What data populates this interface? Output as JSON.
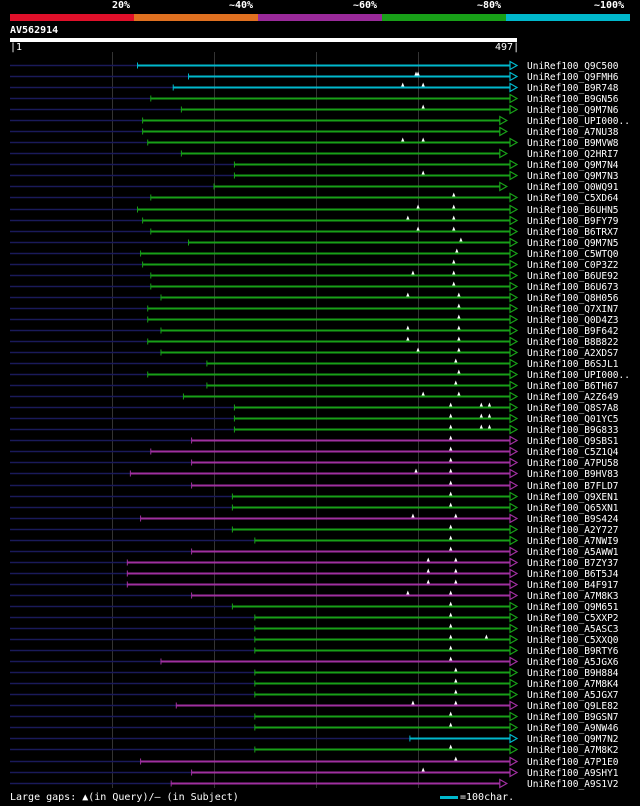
{
  "legend": {
    "segments": [
      {
        "label": "20%",
        "color": "#e0102a"
      },
      {
        "label": "~40%",
        "color": "#e07020"
      },
      {
        "label": "~60%",
        "color": "#9a2a9a"
      },
      {
        "label": "~80%",
        "color": "#18a018"
      },
      {
        "label": "~100%",
        "color": "#00b8cc"
      }
    ]
  },
  "query": {
    "id": "AV562914",
    "start": "1",
    "end": "497"
  },
  "footer": {
    "gaps_note": "Large gaps: ▲(in Query)/— (in Subject)",
    "scale_note": "=100char."
  },
  "colors": {
    "cyan": "#00b8cc",
    "green": "#18a018",
    "purple": "#a030a0",
    "navy": "#1a1a5a"
  },
  "chart_data": {
    "type": "alignment",
    "query_length": 497,
    "hits": [
      {
        "name": "UniRef100_Q9C500",
        "start": 125,
        "end": 497,
        "color": "cyan",
        "gaps": []
      },
      {
        "name": "UniRef100_Q9FMH6",
        "start": 175,
        "end": 497,
        "color": "cyan",
        "gaps": [
          398,
          400
        ]
      },
      {
        "name": "UniRef100_B9R748",
        "start": 160,
        "end": 497,
        "color": "cyan",
        "gaps": [
          385,
          405
        ]
      },
      {
        "name": "UniRef100_B9GN56",
        "start": 138,
        "end": 497,
        "color": "green",
        "gaps": []
      },
      {
        "name": "UniRef100_Q9M7N6",
        "start": 168,
        "end": 497,
        "color": "green",
        "gaps": [
          405
        ]
      },
      {
        "name": "UniRef100_UPI000..",
        "start": 130,
        "end": 487,
        "color": "green",
        "gaps": []
      },
      {
        "name": "UniRef100_A7NU38",
        "start": 130,
        "end": 487,
        "color": "green",
        "gaps": []
      },
      {
        "name": "UniRef100_B9MVW8",
        "start": 135,
        "end": 497,
        "color": "green",
        "gaps": [
          385,
          405
        ]
      },
      {
        "name": "UniRef100_Q2HRI7",
        "start": 168,
        "end": 487,
        "color": "green",
        "gaps": []
      },
      {
        "name": "UniRef100_Q9M7N4",
        "start": 220,
        "end": 497,
        "color": "green",
        "gaps": []
      },
      {
        "name": "UniRef100_Q9M7N3",
        "start": 220,
        "end": 497,
        "color": "green",
        "gaps": [
          405
        ]
      },
      {
        "name": "UniRef100_Q0WQ91",
        "start": 200,
        "end": 487,
        "color": "green",
        "gaps": []
      },
      {
        "name": "UniRef100_C5XD64",
        "start": 138,
        "end": 497,
        "color": "green",
        "gaps": [
          435
        ]
      },
      {
        "name": "UniRef100_B6UHN5",
        "start": 125,
        "end": 497,
        "color": "green",
        "gaps": [
          400,
          435
        ]
      },
      {
        "name": "UniRef100_B9FY79",
        "start": 130,
        "end": 497,
        "color": "green",
        "gaps": [
          390,
          435
        ]
      },
      {
        "name": "UniRef100_B6TRX7",
        "start": 138,
        "end": 497,
        "color": "green",
        "gaps": [
          400,
          435
        ]
      },
      {
        "name": "UniRef100_Q9M7N5",
        "start": 175,
        "end": 497,
        "color": "green",
        "gaps": [
          442
        ]
      },
      {
        "name": "UniRef100_C5WTQ0",
        "start": 128,
        "end": 497,
        "color": "green",
        "gaps": [
          438
        ]
      },
      {
        "name": "UniRef100_C0P3Z2",
        "start": 130,
        "end": 497,
        "color": "green",
        "gaps": [
          435
        ]
      },
      {
        "name": "UniRef100_B6UE92",
        "start": 138,
        "end": 497,
        "color": "green",
        "gaps": [
          395,
          435
        ]
      },
      {
        "name": "UniRef100_B6U673",
        "start": 138,
        "end": 497,
        "color": "green",
        "gaps": [
          435
        ]
      },
      {
        "name": "UniRef100_Q8H056",
        "start": 148,
        "end": 497,
        "color": "green",
        "gaps": [
          390,
          440
        ]
      },
      {
        "name": "UniRef100_Q7XIN7",
        "start": 135,
        "end": 497,
        "color": "green",
        "gaps": [
          440
        ]
      },
      {
        "name": "UniRef100_Q0D4Z3",
        "start": 135,
        "end": 497,
        "color": "green",
        "gaps": [
          440
        ]
      },
      {
        "name": "UniRef100_B9F642",
        "start": 148,
        "end": 497,
        "color": "green",
        "gaps": [
          390,
          440
        ]
      },
      {
        "name": "UniRef100_B8B822",
        "start": 135,
        "end": 497,
        "color": "green",
        "gaps": [
          390,
          440
        ]
      },
      {
        "name": "UniRef100_A2XDS7",
        "start": 148,
        "end": 497,
        "color": "green",
        "gaps": [
          400,
          440
        ]
      },
      {
        "name": "UniRef100_B6SJL1",
        "start": 193,
        "end": 497,
        "color": "green",
        "gaps": [
          437
        ]
      },
      {
        "name": "UniRef100_UPI000..",
        "start": 135,
        "end": 497,
        "color": "green",
        "gaps": [
          440
        ]
      },
      {
        "name": "UniRef100_B6TH67",
        "start": 193,
        "end": 497,
        "color": "green",
        "gaps": [
          437
        ]
      },
      {
        "name": "UniRef100_A2Z649",
        "start": 170,
        "end": 497,
        "color": "green",
        "gaps": [
          405,
          440
        ]
      },
      {
        "name": "UniRef100_Q8S7A8",
        "start": 220,
        "end": 497,
        "color": "green",
        "gaps": [
          432,
          462,
          470
        ]
      },
      {
        "name": "UniRef100_Q01YC5",
        "start": 220,
        "end": 497,
        "color": "green",
        "gaps": [
          432,
          462,
          470
        ]
      },
      {
        "name": "UniRef100_B9G833",
        "start": 220,
        "end": 497,
        "color": "green",
        "gaps": [
          432,
          462,
          470
        ]
      },
      {
        "name": "UniRef100_Q9SBS1",
        "start": 178,
        "end": 497,
        "color": "purple",
        "gaps": [
          432
        ]
      },
      {
        "name": "UniRef100_C5Z1Q4",
        "start": 138,
        "end": 497,
        "color": "purple",
        "gaps": [
          432
        ]
      },
      {
        "name": "UniRef100_A7PU58",
        "start": 178,
        "end": 497,
        "color": "purple",
        "gaps": [
          432
        ]
      },
      {
        "name": "UniRef100_B9HV83",
        "start": 118,
        "end": 497,
        "color": "purple",
        "gaps": [
          398,
          432
        ]
      },
      {
        "name": "UniRef100_B7FLD7",
        "start": 178,
        "end": 497,
        "color": "purple",
        "gaps": [
          432
        ]
      },
      {
        "name": "UniRef100_Q9XEN1",
        "start": 218,
        "end": 497,
        "color": "green",
        "gaps": [
          432
        ]
      },
      {
        "name": "UniRef100_Q65XN1",
        "start": 218,
        "end": 497,
        "color": "green",
        "gaps": [
          432
        ]
      },
      {
        "name": "UniRef100_B9S424",
        "start": 128,
        "end": 497,
        "color": "purple",
        "gaps": [
          395,
          437
        ]
      },
      {
        "name": "UniRef100_A2Y727",
        "start": 218,
        "end": 497,
        "color": "green",
        "gaps": [
          432
        ]
      },
      {
        "name": "UniRef100_A7NWI9",
        "start": 240,
        "end": 497,
        "color": "green",
        "gaps": [
          432
        ]
      },
      {
        "name": "UniRef100_A5AWW1",
        "start": 178,
        "end": 497,
        "color": "purple",
        "gaps": [
          432
        ]
      },
      {
        "name": "UniRef100_B7ZY37",
        "start": 115,
        "end": 497,
        "color": "purple",
        "gaps": [
          410,
          437
        ]
      },
      {
        "name": "UniRef100_B6T5J4",
        "start": 115,
        "end": 497,
        "color": "purple",
        "gaps": [
          410,
          437
        ]
      },
      {
        "name": "UniRef100_B4F917",
        "start": 115,
        "end": 497,
        "color": "purple",
        "gaps": [
          410,
          437
        ]
      },
      {
        "name": "UniRef100_A7M8K3",
        "start": 178,
        "end": 497,
        "color": "purple",
        "gaps": [
          390,
          432
        ]
      },
      {
        "name": "UniRef100_Q9M651",
        "start": 218,
        "end": 497,
        "color": "green",
        "gaps": [
          432
        ]
      },
      {
        "name": "UniRef100_C5XXP2",
        "start": 240,
        "end": 497,
        "color": "green",
        "gaps": [
          432
        ]
      },
      {
        "name": "UniRef100_A5ASC3",
        "start": 240,
        "end": 497,
        "color": "green",
        "gaps": [
          432
        ]
      },
      {
        "name": "UniRef100_C5XXQ0",
        "start": 240,
        "end": 497,
        "color": "green",
        "gaps": [
          432,
          467
        ]
      },
      {
        "name": "UniRef100_B9RTY6",
        "start": 240,
        "end": 497,
        "color": "green",
        "gaps": [
          432
        ]
      },
      {
        "name": "UniRef100_A5JGX6",
        "start": 148,
        "end": 497,
        "color": "purple",
        "gaps": [
          432
        ]
      },
      {
        "name": "UniRef100_B9H884",
        "start": 240,
        "end": 497,
        "color": "green",
        "gaps": [
          437
        ]
      },
      {
        "name": "UniRef100_A7M8K4",
        "start": 240,
        "end": 497,
        "color": "green",
        "gaps": [
          437
        ]
      },
      {
        "name": "UniRef100_A5JGX7",
        "start": 240,
        "end": 497,
        "color": "green",
        "gaps": [
          437
        ]
      },
      {
        "name": "UniRef100_Q9LE82",
        "start": 163,
        "end": 497,
        "color": "purple",
        "gaps": [
          395,
          437
        ]
      },
      {
        "name": "UniRef100_B9GSN7",
        "start": 240,
        "end": 497,
        "color": "green",
        "gaps": [
          432
        ]
      },
      {
        "name": "UniRef100_A9NW46",
        "start": 240,
        "end": 497,
        "color": "green",
        "gaps": [
          432
        ]
      },
      {
        "name": "UniRef100_Q9M7N2",
        "start": 392,
        "end": 497,
        "color": "cyan",
        "gaps": []
      },
      {
        "name": "UniRef100_A7M8K2",
        "start": 240,
        "end": 497,
        "color": "green",
        "gaps": [
          432
        ]
      },
      {
        "name": "UniRef100_A7P1E0",
        "start": 128,
        "end": 497,
        "color": "purple",
        "gaps": [
          437
        ]
      },
      {
        "name": "UniRef100_A9SHY1",
        "start": 178,
        "end": 497,
        "color": "purple",
        "gaps": [
          405
        ]
      },
      {
        "name": "UniRef100_A9S1V2",
        "start": 158,
        "end": 487,
        "color": "purple",
        "gaps": []
      }
    ]
  }
}
